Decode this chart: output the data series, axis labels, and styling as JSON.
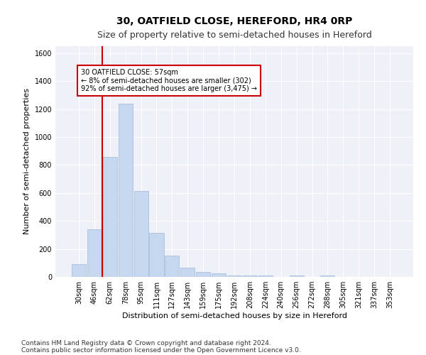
{
  "title": "30, OATFIELD CLOSE, HEREFORD, HR4 0RP",
  "subtitle": "Size of property relative to semi-detached houses in Hereford",
  "xlabel": "Distribution of semi-detached houses by size in Hereford",
  "ylabel": "Number of semi-detached properties",
  "categories": [
    "30sqm",
    "46sqm",
    "62sqm",
    "78sqm",
    "95sqm",
    "111sqm",
    "127sqm",
    "143sqm",
    "159sqm",
    "175sqm",
    "192sqm",
    "208sqm",
    "224sqm",
    "240sqm",
    "256sqm",
    "272sqm",
    "288sqm",
    "305sqm",
    "321sqm",
    "337sqm",
    "353sqm"
  ],
  "values": [
    90,
    340,
    860,
    1240,
    615,
    315,
    150,
    65,
    35,
    25,
    12,
    8,
    8,
    0,
    12,
    0,
    12,
    0,
    0,
    0,
    0
  ],
  "bar_color": "#c5d8f0",
  "bar_edge_color": "#a0b8d8",
  "vline_color": "#cc0000",
  "annotation_text": "30 OATFIELD CLOSE: 57sqm\n← 8% of semi-detached houses are smaller (302)\n92% of semi-detached houses are larger (3,475) →",
  "annotation_box_color": "white",
  "annotation_box_edge": "#cc0000",
  "ylim": [
    0,
    1650
  ],
  "yticks": [
    0,
    200,
    400,
    600,
    800,
    1000,
    1200,
    1400,
    1600
  ],
  "footnote1": "Contains HM Land Registry data © Crown copyright and database right 2024.",
  "footnote2": "Contains public sector information licensed under the Open Government Licence v3.0.",
  "background_color": "#eef2f8",
  "title_fontsize": 10,
  "subtitle_fontsize": 9,
  "tick_fontsize": 7,
  "label_fontsize": 8,
  "footnote_fontsize": 6.5
}
